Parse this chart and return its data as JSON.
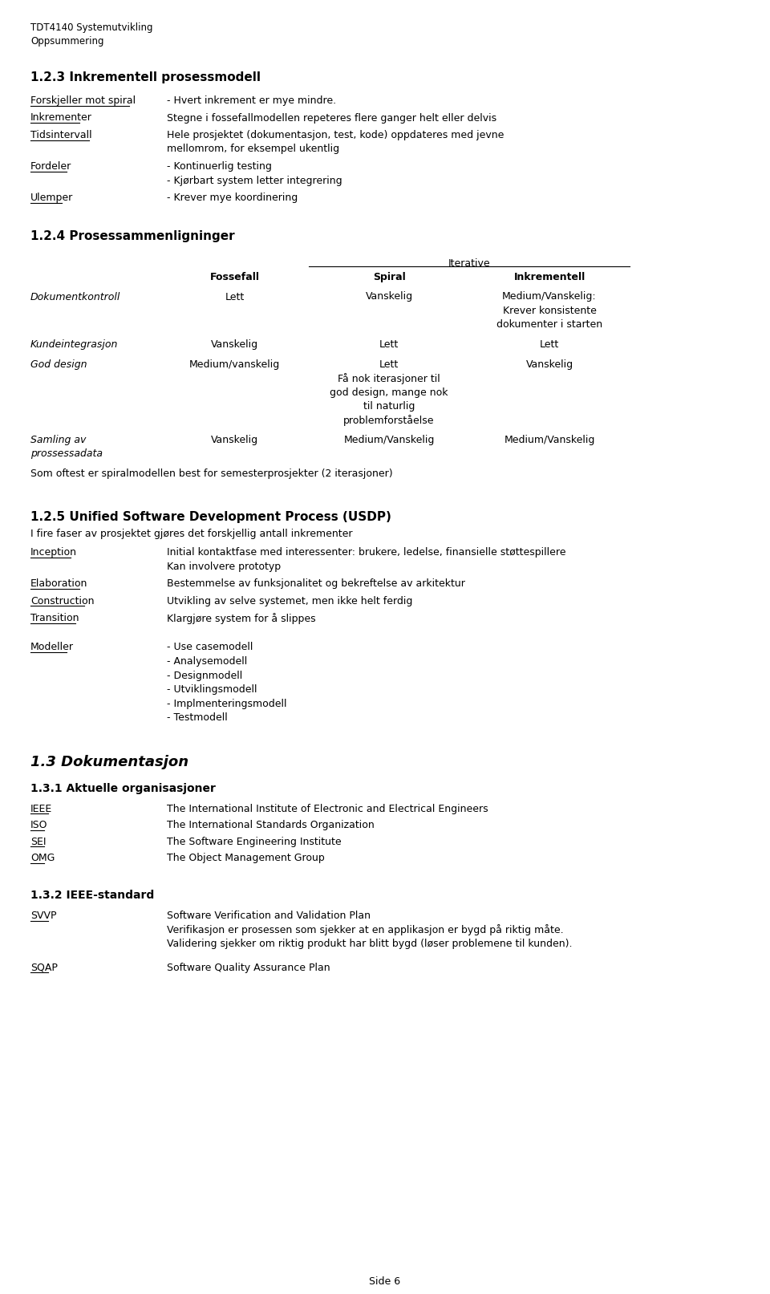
{
  "page_width": 9.6,
  "page_height": 16.13,
  "bg_color": "#ffffff",
  "header_line1": "TDT4140 Systemutvikling",
  "header_line2": "Oppsummering",
  "sec123_title": "1.2.3 Inkrementell prosessmodell",
  "sec123_rows": [
    {
      "label": "Forskjeller mot spiral",
      "text": "- Hvert inkrement er mye mindre."
    },
    {
      "label": "Inkrementer",
      "text": "Stegne i fossefallmodellen repeteres flere ganger helt eller delvis"
    },
    {
      "label": "Tidsintervall",
      "text": "Hele prosjektet (dokumentasjon, test, kode) oppdateres med jevne\nmellomrom, for eksempel ukentlig"
    },
    {
      "label": "Fordeler",
      "text": "- Kontinuerlig testing\n- Kjørbart system letter integrering"
    },
    {
      "label": "Ulemper",
      "text": "- Krever mye koordinering"
    }
  ],
  "sec124_title": "1.2.4 Prosessammenligninger",
  "sec124_iterative": "Iterative",
  "sec124_col_headers": [
    "Fossefall",
    "Spiral",
    "Inkrementell"
  ],
  "sec124_rows": [
    {
      "label": "Dokumentkontroll",
      "c1": "Lett",
      "c2": "Vanskelig",
      "c3": "Medium/Vanskelig:\nKrever konsistente\ndokumenter i starten"
    },
    {
      "label": "Kundeintegrasjon",
      "c1": "Vanskelig",
      "c2": "Lett",
      "c3": "Lett"
    },
    {
      "label": "God design",
      "c1": "Medium/vanskelig",
      "c2": "Lett\nFå nok iterasjoner til\ngod design, mange nok\ntil naturlig\nproblemforståelse",
      "c3": "Vanskelig"
    },
    {
      "label": "Samling av\nprossessadata",
      "c1": "Vanskelig",
      "c2": "Medium/Vanskelig",
      "c3": "Medium/Vanskelig"
    }
  ],
  "sec124_footer": "Som oftest er spiralmodellen best for semesterprosjekter (2 iterasjoner)",
  "sec125_title": "1.2.5 Unified Software Development Process (USDP)",
  "sec125_intro": "I fire faser av prosjektet gjøres det forskjellig antall inkrementer",
  "sec125_rows": [
    {
      "label": "Inception",
      "text": "Initial kontaktfase med interessenter: brukere, ledelse, finansielle støttespillere\nKan involvere prototyp"
    },
    {
      "label": "Elaboration",
      "text": "Bestemmelse av funksjonalitet og bekreftelse av arkitektur"
    },
    {
      "label": "Construction",
      "text": "Utvikling av selve systemet, men ikke helt ferdig"
    },
    {
      "label": "Transition",
      "text": "Klargjøre system for å slippes"
    }
  ],
  "sec125_modeller_label": "Modeller",
  "sec125_modeller": [
    "- Use casemodell",
    "- Analysemodell",
    "- Designmodell",
    "- Utviklingsmodell",
    "- Implmenteringsmodell",
    "- Testmodell"
  ],
  "sec13_title": "1.3 Dokumentasjon",
  "sec131_title": "1.3.1 Aktuelle organisasjoner",
  "sec131_rows": [
    {
      "label": "IEEE",
      "text": "The International Institute of Electronic and Electrical Engineers"
    },
    {
      "label": "ISO",
      "text": "The International Standards Organization"
    },
    {
      "label": "SEI",
      "text": "The Software Engineering Institute"
    },
    {
      "label": "OMG",
      "text": "The Object Management Group"
    }
  ],
  "sec132_title": "1.3.2 IEEE-standard",
  "sec132_rows": [
    {
      "label": "SVVP",
      "text": "Software Verification and Validation Plan\nVerifikasjon er prosessen som sjekker at en applikasjon er bygd på riktig måte.\nValidering sjekker om riktig produkt har blitt bygd (løser problemene til kunden)."
    },
    {
      "label": "SQAP",
      "text": "Software Quality Assurance Plan"
    }
  ],
  "footer": "Side 6"
}
